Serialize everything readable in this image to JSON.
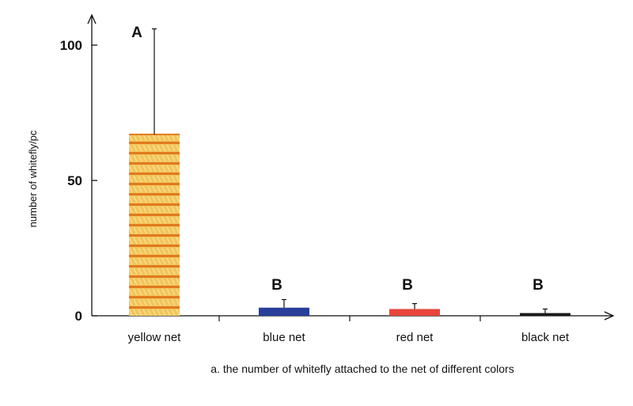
{
  "chart_data": {
    "type": "bar",
    "categories": [
      "yellow net",
      "blue net",
      "red net",
      "black net"
    ],
    "values": [
      67,
      3,
      2.5,
      1
    ],
    "error_upper": [
      106,
      6,
      4.5,
      2.5
    ],
    "significance": [
      "A",
      "B",
      "B",
      "B"
    ],
    "colors": [
      "#f0b73a",
      "#2a3f9a",
      "#e8453c",
      "#1a1a1a"
    ],
    "ylabel": "number of whitefly/pc",
    "caption": "a. the number of whitefly attached to the net of different colors",
    "yticks": [
      0,
      50,
      100
    ],
    "ylim": [
      0,
      110
    ],
    "grid": false
  }
}
